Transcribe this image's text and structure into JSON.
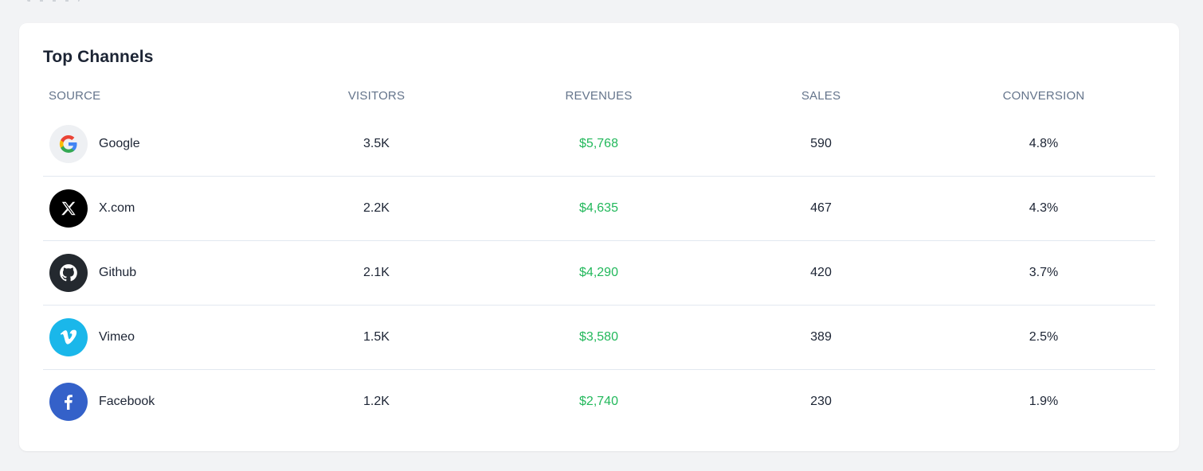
{
  "card": {
    "title": "Top Channels"
  },
  "table": {
    "headers": {
      "source": "SOURCE",
      "visitors": "VISITORS",
      "revenues": "REVENUES",
      "sales": "SALES",
      "conversion": "CONVERSION"
    },
    "rows": [
      {
        "source": "Google",
        "icon": "google-icon",
        "visitors": "3.5K",
        "revenues": "$5,768",
        "sales": "590",
        "conversion": "4.8%"
      },
      {
        "source": "X.com",
        "icon": "x-icon",
        "visitors": "2.2K",
        "revenues": "$4,635",
        "sales": "467",
        "conversion": "4.3%"
      },
      {
        "source": "Github",
        "icon": "github-icon",
        "visitors": "2.1K",
        "revenues": "$4,290",
        "sales": "420",
        "conversion": "3.7%"
      },
      {
        "source": "Vimeo",
        "icon": "vimeo-icon",
        "visitors": "1.5K",
        "revenues": "$3,580",
        "sales": "389",
        "conversion": "2.5%"
      },
      {
        "source": "Facebook",
        "icon": "facebook-icon",
        "visitors": "1.2K",
        "revenues": "$2,740",
        "sales": "230",
        "conversion": "1.9%"
      }
    ]
  },
  "colors": {
    "revenue": "#22b85b",
    "header_text": "#64748b",
    "body_text": "#1c2434"
  }
}
